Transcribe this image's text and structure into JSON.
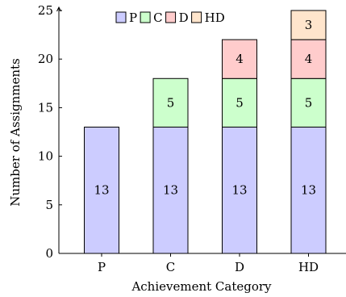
{
  "chart_data": {
    "type": "bar",
    "stacked": true,
    "categories": [
      "P",
      "C",
      "D",
      "HD"
    ],
    "series": [
      {
        "name": "P",
        "values": [
          13,
          13,
          13,
          13
        ],
        "color": "#ccccff"
      },
      {
        "name": "C",
        "values": [
          0,
          5,
          5,
          5
        ],
        "color": "#ccffcc"
      },
      {
        "name": "D",
        "values": [
          0,
          0,
          4,
          4
        ],
        "color": "#ffcccc"
      },
      {
        "name": "HD",
        "values": [
          0,
          0,
          0,
          3
        ],
        "color": "#ffe5cc"
      }
    ],
    "data_labels": [
      [
        "13",
        "13",
        "13",
        "13"
      ],
      [
        "",
        "5",
        "5",
        "5"
      ],
      [
        "",
        "",
        "4",
        "4"
      ],
      [
        "",
        "",
        "",
        "3"
      ]
    ],
    "xlabel": "Achievement Category",
    "ylabel": "Number of Assignments",
    "ylim": [
      0,
      25
    ],
    "yticks": [
      0,
      5,
      10,
      15,
      20,
      25
    ],
    "legend_position": "top",
    "grid": false
  }
}
